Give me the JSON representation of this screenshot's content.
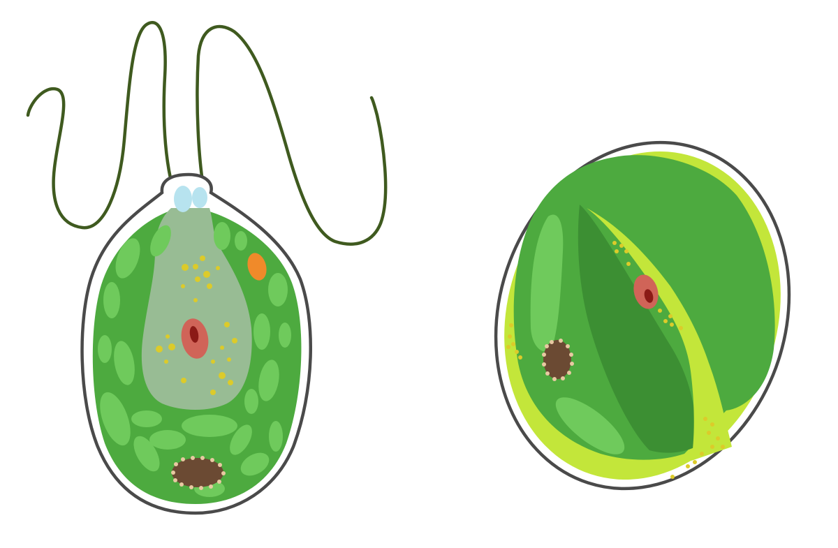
{
  "diagram": {
    "kind": "illustration",
    "text_labels": [],
    "figures": [
      {
        "name": "flagellated-cell",
        "parts": [
          "flagellum",
          "flagellum",
          "cell-wall",
          "basal-bodies",
          "chloroplast",
          "central-vacuole",
          "nucleus",
          "nucleolus",
          "stigma",
          "pyrenoid",
          "starch-granules"
        ]
      },
      {
        "name": "round-cell",
        "parts": [
          "cell-wall",
          "cytoplasm-layer",
          "chloroplast",
          "cytoplasm-band",
          "nucleus",
          "nucleolus",
          "pyrenoid",
          "granules"
        ]
      }
    ]
  },
  "colors": {
    "outline": "#4a4a4a",
    "flagellum": "#3f5a1f",
    "chloroplast": "#4daa3f",
    "chloroplast_dark": "#3c8f33",
    "plastid_light": "#6fca5c",
    "vacuole": "#98bc94",
    "cytoplasm_lime": "#c3e63a",
    "nucleus": "#d06458",
    "nucleolus": "#8b1a16",
    "pyrenoid": "#6b4a33",
    "pyrenoid_dots": "#e8c9a2",
    "granule": "#dccb2a",
    "stigma": "#f08a2a",
    "basal_body": "#b7e3ef"
  }
}
